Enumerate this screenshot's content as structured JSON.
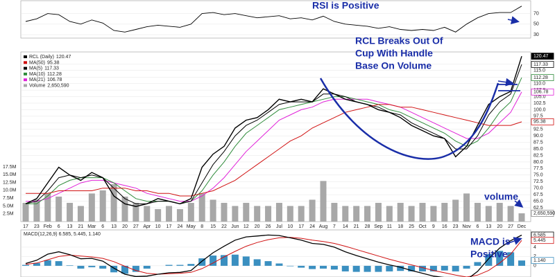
{
  "chart_data": {
    "type": "stock",
    "categories": [
      "17",
      "23",
      "Feb",
      "6",
      "13",
      "21",
      "Mar",
      "6",
      "13",
      "20",
      "27",
      "Apr",
      "10",
      "17",
      "24",
      "May",
      "8",
      "15",
      "22",
      "Jun",
      "12",
      "20",
      "26",
      "Jul",
      "10",
      "17",
      "24",
      "Aug",
      "7",
      "14",
      "21",
      "28",
      "Sep",
      "11",
      "18",
      "25",
      "Oct",
      "9",
      "16",
      "23",
      "Nov",
      "6",
      "13",
      "20",
      "27",
      "Dec"
    ],
    "price": {
      "series": [
        {
          "name": "RCL (Daily)",
          "color": "#000000",
          "values": [
            64,
            66,
            72,
            78,
            75,
            73,
            76,
            74,
            67,
            64,
            63,
            64,
            66,
            65,
            64,
            66,
            78,
            83,
            86,
            93,
            96,
            97,
            100,
            104,
            103,
            104,
            103,
            108,
            106,
            104,
            103,
            102,
            100,
            99,
            97,
            94,
            92,
            90,
            89,
            82,
            86,
            94,
            102,
            105,
            107,
            120.47
          ]
        },
        {
          "name": "MA(50)",
          "color": "#d01010",
          "values": [
            68,
            68,
            68,
            69,
            69,
            69,
            69,
            70,
            70,
            70,
            69,
            69,
            68,
            68,
            67,
            67,
            68,
            69,
            71,
            73,
            76,
            79,
            82,
            85,
            88,
            90,
            93,
            95,
            97,
            99,
            100,
            101,
            102,
            102,
            101,
            101,
            100,
            99,
            98,
            97,
            96,
            95,
            94,
            94,
            94,
            95.38
          ]
        },
        {
          "name": "MA(5)",
          "color": "#000000",
          "values": [
            64,
            65,
            69,
            74,
            75,
            74,
            75,
            74,
            70,
            66,
            64,
            64,
            65,
            65,
            64,
            65,
            72,
            79,
            84,
            90,
            94,
            96,
            99,
            102,
            103,
            103,
            103,
            106,
            106,
            105,
            103,
            102,
            101,
            99,
            98,
            95,
            93,
            91,
            89,
            85,
            85,
            90,
            98,
            103,
            106,
            117.33
          ]
        },
        {
          "name": "MA(10)",
          "color": "#2e8b3a",
          "values": [
            64,
            64,
            67,
            71,
            73,
            74,
            74,
            74,
            72,
            69,
            66,
            65,
            65,
            65,
            64,
            65,
            69,
            75,
            80,
            86,
            91,
            94,
            97,
            100,
            101,
            102,
            103,
            104,
            105,
            105,
            104,
            103,
            102,
            100,
            99,
            97,
            95,
            93,
            91,
            88,
            86,
            88,
            93,
            99,
            103,
            112.28
          ]
        },
        {
          "name": "MA(21)",
          "color": "#e020d8",
          "values": [
            65,
            65,
            66,
            68,
            70,
            72,
            73,
            73,
            72,
            71,
            70,
            68,
            67,
            66,
            65,
            65,
            67,
            70,
            74,
            79,
            84,
            88,
            92,
            96,
            98,
            100,
            101,
            103,
            104,
            104,
            104,
            104,
            103,
            102,
            101,
            99,
            97,
            95,
            93,
            91,
            89,
            89,
            91,
            95,
            99,
            106.78
          ]
        }
      ],
      "ylim": [
        57.2,
        122.1
      ],
      "yticks": [
        62.5,
        {
          "value": 65,
          "label": "65.0"
        },
        67.5,
        {
          "value": 70,
          "label": "70.0"
        },
        72.5,
        {
          "value": 75,
          "label": "75.0"
        },
        77.5,
        {
          "value": 80,
          "label": "80.0"
        },
        82.5,
        {
          "value": 85,
          "label": "85.0"
        },
        87.5,
        {
          "value": 90,
          "label": "90.0"
        },
        92.5,
        {
          "value": 95,
          "label": "95.0"
        },
        97.5,
        {
          "value": 100,
          "label": "100.0"
        },
        102.5,
        {
          "value": 105,
          "label": "105.0"
        },
        107.5,
        {
          "value": 110,
          "label": "110.0"
        },
        112.5,
        {
          "value": 115,
          "label": "115.0"
        },
        117.5
      ]
    },
    "volume": {
      "name": "Volume",
      "color": "#a8a8a8",
      "values": [
        6000000,
        7000000,
        9000000,
        8000000,
        6000000,
        5000000,
        9000000,
        10000000,
        12000000,
        8000000,
        6000000,
        5000000,
        4000000,
        5000000,
        4000000,
        6000000,
        9000000,
        7000000,
        6000000,
        5000000,
        6000000,
        5000000,
        5000000,
        6000000,
        5000000,
        5000000,
        7000000,
        13000000,
        6000000,
        5000000,
        5000000,
        5000000,
        6000000,
        5000000,
        6000000,
        5000000,
        6000000,
        5000000,
        6000000,
        7000000,
        9000000,
        6000000,
        5000000,
        6000000,
        5000000,
        2650590
      ],
      "value_labels": [
        null,
        null,
        null,
        null,
        null,
        null,
        null,
        null,
        null,
        null,
        null,
        null,
        null,
        null,
        null,
        null,
        null,
        null,
        null,
        null,
        null,
        null,
        null,
        null,
        null,
        null,
        null,
        null,
        null,
        null,
        null,
        null,
        null,
        null,
        null,
        null,
        null,
        null,
        null,
        null,
        null,
        null,
        null,
        null,
        null,
        "2,650,590"
      ],
      "ylim": [
        0,
        54300000
      ],
      "yticks": [
        {
          "value": 2500000,
          "label": "2.5M"
        },
        {
          "value": 5000000,
          "label": "5.0M"
        },
        {
          "value": 7500000,
          "label": "7.5M"
        },
        {
          "value": 10000000,
          "label": "10.0M"
        },
        {
          "value": 12500000,
          "label": "12.5M"
        },
        {
          "value": 15000000,
          "label": "15.0M"
        },
        {
          "value": 17500000,
          "label": "17.5M"
        }
      ]
    },
    "rsi": {
      "color": "#000000",
      "values": [
        55,
        60,
        70,
        68,
        55,
        50,
        58,
        52,
        38,
        35,
        40,
        45,
        48,
        46,
        44,
        50,
        70,
        72,
        68,
        70,
        66,
        62,
        64,
        66,
        60,
        62,
        58,
        65,
        55,
        50,
        48,
        46,
        42,
        45,
        40,
        38,
        40,
        38,
        44,
        35,
        50,
        62,
        70,
        72,
        72,
        84.2
      ],
      "ylim": [
        23.5,
        94.5
      ],
      "yticks": [
        30,
        50,
        70
      ]
    },
    "macd": {
      "label": "MACD(12,26,9) 6.585, 5.445, 1.140",
      "macd": {
        "color": "#000000",
        "values": [
          0.5,
          1.2,
          2.5,
          3,
          2.4,
          1.5,
          1.6,
          1.0,
          -0.5,
          -1.8,
          -2.3,
          -2.2,
          -1.8,
          -1.5,
          -1.4,
          -1,
          1,
          2.8,
          4.2,
          5.5,
          6.2,
          6.4,
          6.6,
          6.5,
          6,
          5.5,
          4.8,
          4.6,
          4.0,
          3.0,
          2.2,
          1.5,
          0.8,
          0.2,
          -0.3,
          -1.0,
          -1.6,
          -2.2,
          -2.5,
          -3.2,
          -3.0,
          -1.2,
          1.5,
          3.8,
          5.4,
          6.585
        ]
      },
      "signal": {
        "color": "#d01010",
        "values": [
          0.3,
          0.6,
          1.3,
          2,
          2.3,
          2.1,
          1.9,
          1.6,
          0.9,
          -0.1,
          -1,
          -1.6,
          -1.8,
          -1.7,
          -1.6,
          -1.4,
          -0.6,
          0.6,
          1.9,
          3.1,
          4.2,
          5,
          5.6,
          6,
          6.1,
          5.9,
          5.5,
          5.2,
          4.8,
          4.2,
          3.5,
          2.8,
          2.1,
          1.4,
          0.8,
          0.2,
          -0.4,
          -1,
          -1.5,
          -2,
          -2.4,
          -2.0,
          -1.0,
          0.6,
          2.5,
          5.445
        ]
      },
      "histogram": {
        "color": "#3a8fc0",
        "values": [
          0.2,
          0.6,
          1.2,
          1.0,
          0.1,
          -0.6,
          -0.3,
          -0.6,
          -1.4,
          -1.7,
          -1.3,
          -0.6,
          0,
          0.2,
          0.2,
          0.4,
          1.6,
          2.2,
          2.3,
          2.4,
          2.0,
          1.4,
          1.0,
          0.5,
          -0.1,
          -0.4,
          -0.7,
          -0.6,
          -0.8,
          -1.2,
          -1.3,
          -1.3,
          -1.3,
          -1.2,
          -1.1,
          -1.2,
          -1.2,
          -1.2,
          -1.0,
          -1.2,
          -0.6,
          0.8,
          2.5,
          3.2,
          2.9,
          1.14
        ],
        "value_labels": [
          null,
          null,
          null,
          null,
          null,
          null,
          null,
          null,
          null,
          null,
          null,
          null,
          null,
          null,
          null,
          null,
          null,
          null,
          null,
          null,
          null,
          null,
          null,
          null,
          null,
          null,
          null,
          null,
          null,
          null,
          null,
          null,
          null,
          null,
          null,
          null,
          null,
          null,
          null,
          null,
          null,
          null,
          null,
          null,
          null,
          "1.140"
        ]
      },
      "ylim": [
        -2.4,
        7.7
      ],
      "yticks": [
        0,
        2,
        4
      ]
    },
    "annotations": {
      "rsi": "RSI is Positive",
      "breakout": [
        "RCL Breaks Out Of",
        "Cup With Handle",
        "Base On Volume"
      ],
      "volume": "volume",
      "macd": [
        "MACD is",
        "Positive"
      ]
    }
  }
}
